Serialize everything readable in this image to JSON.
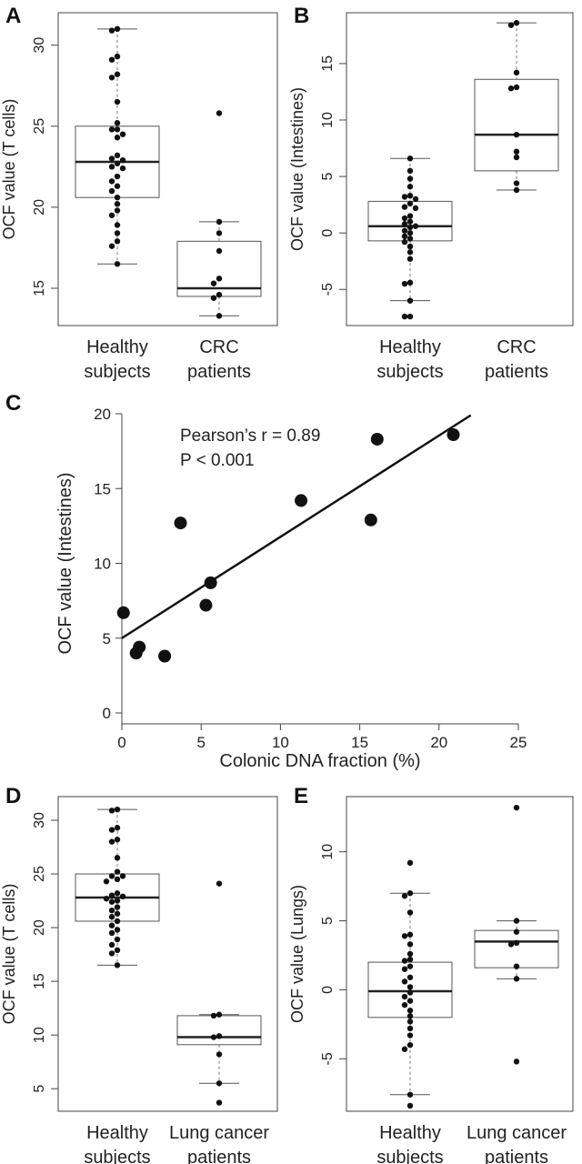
{
  "panels": [
    {
      "id": "A",
      "label": "A",
      "chart_data": {
        "type": "box",
        "ylabel": "OCF value (T cells)",
        "ylim": [
          12.7,
          32.0
        ],
        "yticks": [
          15,
          20,
          25,
          30
        ],
        "categories": [
          {
            "line1": "Healthy",
            "line2": "subjects"
          },
          {
            "line1": "CRC",
            "line2": "patients"
          }
        ],
        "groups": [
          {
            "name": "Healthy subjects",
            "min": 16.5,
            "q1": 20.6,
            "median": 22.8,
            "q3": 25.0,
            "max": 31.0,
            "points": [
              31.0,
              30.9,
              29.3,
              29.1,
              28.2,
              28.0,
              26.5,
              25.2,
              24.8,
              24.8,
              24.5,
              24.3,
              23.2,
              23.0,
              22.9,
              22.7,
              22.5,
              22.4,
              21.9,
              21.6,
              21.3,
              21.0,
              20.6,
              20.2,
              19.8,
              19.5,
              18.9,
              18.4,
              17.9,
              17.6,
              16.5
            ]
          },
          {
            "name": "CRC patients",
            "min": 13.3,
            "q1": 14.5,
            "median": 15.0,
            "q3": 17.9,
            "max": 19.1,
            "points": [
              25.8,
              19.1,
              18.4,
              17.3,
              15.6,
              15.3,
              14.6,
              14.4,
              13.3
            ]
          }
        ]
      }
    },
    {
      "id": "B",
      "label": "B",
      "chart_data": {
        "type": "box",
        "ylabel": "OCF value (Intestines)",
        "ylim": [
          -8.2,
          19.5
        ],
        "yticks": [
          -5,
          0,
          5,
          10,
          15
        ],
        "categories": [
          {
            "line1": "Healthy",
            "line2": "subjects"
          },
          {
            "line1": "CRC",
            "line2": "patients"
          }
        ],
        "groups": [
          {
            "name": "Healthy subjects",
            "min": -6.0,
            "q1": -0.7,
            "median": 0.6,
            "q3": 2.8,
            "max": 6.6,
            "points": [
              6.6,
              5.5,
              4.8,
              4.1,
              3.3,
              3.2,
              3.0,
              2.6,
              2.3,
              2.2,
              1.5,
              1.3,
              1.0,
              0.8,
              0.6,
              0.5,
              0.2,
              0.0,
              -0.3,
              -0.5,
              -0.8,
              -1.2,
              -1.7,
              -2.3,
              -4.4,
              -4.5,
              -6.0,
              -7.4,
              -7.4
            ]
          },
          {
            "name": "CRC patients",
            "min": 3.8,
            "q1": 5.5,
            "median": 8.7,
            "q3": 13.6,
            "max": 18.6,
            "points": [
              18.6,
              18.4,
              14.2,
              12.9,
              12.8,
              8.7,
              7.2,
              6.7,
              4.4,
              3.8
            ]
          }
        ]
      }
    },
    {
      "id": "C",
      "label": "C",
      "chart_data": {
        "type": "scatter",
        "xlabel": "Colonic DNA fraction (%)",
        "ylabel": "OCF value (Intestines)",
        "xlim": [
          0,
          25
        ],
        "ylim": [
          0,
          20
        ],
        "xticks": [
          0,
          5,
          10,
          15,
          20,
          25
        ],
        "yticks": [
          0,
          5,
          10,
          15,
          20
        ],
        "points": [
          {
            "x": 0.1,
            "y": 6.7
          },
          {
            "x": 0.9,
            "y": 4.0
          },
          {
            "x": 1.1,
            "y": 4.4
          },
          {
            "x": 2.7,
            "y": 3.8
          },
          {
            "x": 3.7,
            "y": 12.7
          },
          {
            "x": 5.3,
            "y": 7.2
          },
          {
            "x": 5.6,
            "y": 8.7
          },
          {
            "x": 11.3,
            "y": 14.2
          },
          {
            "x": 15.7,
            "y": 12.9
          },
          {
            "x": 16.1,
            "y": 18.3
          },
          {
            "x": 20.9,
            "y": 18.6
          }
        ],
        "fit_line": {
          "x0": 0,
          "y0": 5.0,
          "x1": 22,
          "y1": 19.9
        },
        "annotation_line1": "Pearson’s r = 0.89",
        "annotation_line2": "P < 0.001"
      }
    },
    {
      "id": "D",
      "label": "D",
      "chart_data": {
        "type": "box",
        "ylabel": "OCF value (T cells)",
        "ylim": [
          2.9,
          32.2
        ],
        "yticks": [
          5,
          10,
          15,
          20,
          25,
          30
        ],
        "categories": [
          {
            "line1": "Healthy",
            "line2": "subjects"
          },
          {
            "line1": "Lung cancer",
            "line2": "patients"
          }
        ],
        "groups": [
          {
            "name": "Healthy subjects",
            "min": 16.5,
            "q1": 20.6,
            "median": 22.8,
            "q3": 25.0,
            "max": 31.0,
            "points": [
              31.0,
              30.9,
              29.3,
              29.1,
              28.2,
              28.0,
              26.5,
              25.2,
              24.8,
              24.8,
              24.5,
              24.3,
              23.2,
              23.0,
              22.9,
              22.7,
              22.5,
              22.4,
              21.9,
              21.6,
              21.3,
              21.0,
              20.6,
              20.2,
              19.8,
              19.5,
              18.9,
              18.4,
              17.9,
              17.6,
              16.5
            ]
          },
          {
            "name": "Lung cancer patients",
            "min": 5.5,
            "q1": 9.1,
            "median": 9.8,
            "q3": 11.8,
            "max": 11.9,
            "points": [
              24.1,
              11.9,
              11.8,
              9.9,
              9.8,
              8.2,
              5.5,
              3.7
            ]
          }
        ]
      }
    },
    {
      "id": "E",
      "label": "E",
      "chart_data": {
        "type": "box",
        "ylabel": "OCF value (Lungs)",
        "ylim": [
          -8.8,
          14.0
        ],
        "yticks": [
          -5,
          0,
          5,
          10
        ],
        "categories": [
          {
            "line1": "Healthy",
            "line2": "subjects"
          },
          {
            "line1": "Lung cancer",
            "line2": "patients"
          }
        ],
        "groups": [
          {
            "name": "Healthy subjects",
            "min": -7.6,
            "q1": -2.0,
            "median": -0.1,
            "q3": 2.0,
            "max": 7.0,
            "points": [
              9.2,
              7.0,
              6.8,
              5.6,
              4.0,
              3.9,
              3.3,
              2.6,
              2.2,
              2.1,
              1.7,
              1.5,
              0.9,
              0.6,
              0.2,
              -0.2,
              -0.5,
              -0.8,
              -1.1,
              -1.5,
              -1.9,
              -2.3,
              -2.8,
              -3.3,
              -4.0,
              -4.3,
              -7.6,
              -8.4
            ]
          },
          {
            "name": "Lung cancer patients",
            "min": 0.8,
            "q1": 1.6,
            "median": 3.5,
            "q3": 4.3,
            "max": 5.0,
            "points": [
              13.2,
              5.0,
              4.2,
              3.4,
              3.3,
              1.7,
              0.8,
              -5.2
            ]
          }
        ]
      }
    }
  ]
}
